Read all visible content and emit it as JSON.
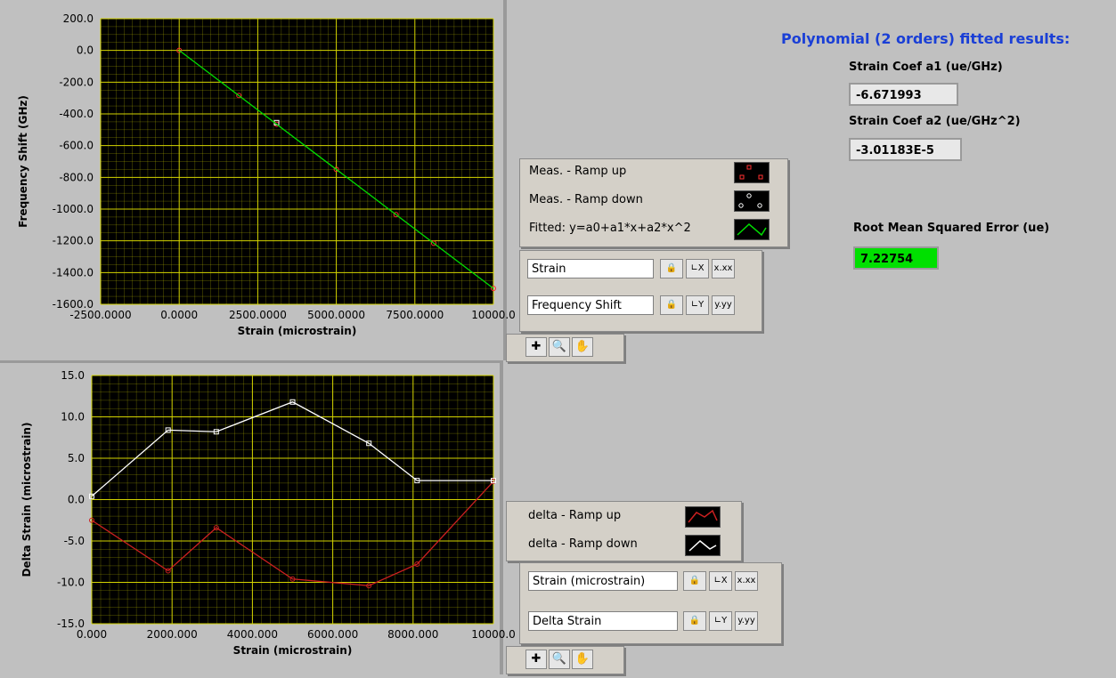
{
  "results": {
    "heading": "Polynomial (2 orders) fitted results:",
    "a1_label": "Strain Coef a1 (ue/GHz)",
    "a1_value": "-6.671993",
    "a2_label": "Strain Coef a2 (ue/GHz^2)",
    "a2_value": "-3.01183E-5",
    "rmse_label": "Root Mean Squared Error (ue)",
    "rmse_value": "7.22754",
    "rmse_color": "#00e000",
    "heading_color": "#1a3fd6"
  },
  "legend_top": {
    "items": [
      "Meas. - Ramp up",
      "Meas. - Ramp down",
      "Fitted: y=a0+a1*x+a2*x^2"
    ]
  },
  "scale_top": {
    "x_name": "Strain",
    "y_name": "Frequency Shift",
    "x_fmt": "x.xx",
    "y_fmt": "y.yy"
  },
  "legend_bottom": {
    "items": [
      "delta - Ramp up",
      "delta - Ramp down"
    ]
  },
  "scale_bottom": {
    "x_name": "Strain (microstrain)",
    "y_name": "Delta Strain",
    "x_fmt": "x.xx",
    "y_fmt": "y.yy"
  },
  "chart_data": [
    {
      "type": "scatter",
      "xlabel": "Strain (microstrain)",
      "ylabel": "Frequency Shift (GHz)",
      "xlim": [
        -2500,
        10000
      ],
      "ylim": [
        -1600,
        200
      ],
      "x_ticks": [
        "-2500.0000",
        "0.0000",
        "2500.0000",
        "5000.0000",
        "7500.0000",
        "10000.0"
      ],
      "y_ticks": [
        "200.0",
        "0.0",
        "-200.0",
        "-400.0",
        "-600.0",
        "-800.0",
        "-1000.0",
        "-1200.0",
        "-1400.0",
        "-1600.0"
      ],
      "grid": true,
      "background": "#000000",
      "grid_color": "#d4d400",
      "series": [
        {
          "name": "Meas. - Ramp up",
          "color": "#ff3030",
          "x": [
            0,
            1900,
            3100,
            5000,
            6900,
            8100,
            10000
          ],
          "y": [
            0,
            -284,
            -465,
            -750,
            -1035,
            -1215,
            -1500
          ]
        },
        {
          "name": "Meas. - Ramp down",
          "color": "#ffffff",
          "x": [
            3100
          ],
          "y": [
            -455
          ]
        },
        {
          "name": "Fitted: y=a0+a1*x+a2*x^2",
          "color": "#00dd00",
          "x": [
            0,
            10000
          ],
          "y": [
            0,
            -1500
          ]
        }
      ]
    },
    {
      "type": "line",
      "xlabel": "Strain (microstrain)",
      "ylabel": "Delta Strain (microstrain)",
      "xlim": [
        0,
        10000
      ],
      "ylim": [
        -15,
        15
      ],
      "x_ticks": [
        "0.000",
        "2000.000",
        "4000.000",
        "6000.000",
        "8000.000",
        "10000.0"
      ],
      "y_ticks": [
        "15.0",
        "10.0",
        "5.0",
        "0.0",
        "-5.0",
        "-10.0",
        "-15.0"
      ],
      "grid": true,
      "background": "#000000",
      "grid_color": "#d4d400",
      "series": [
        {
          "name": "delta - Ramp up",
          "color": "#cc2020",
          "x": [
            0,
            1900,
            3100,
            5000,
            6900,
            8100,
            10000
          ],
          "y": [
            -2.5,
            -8.6,
            -3.4,
            -9.6,
            -10.4,
            -7.8,
            2.2
          ]
        },
        {
          "name": "delta - Ramp down",
          "color": "#ffffff",
          "x": [
            0,
            1900,
            3100,
            5000,
            6900,
            8100,
            10000
          ],
          "y": [
            0.4,
            8.4,
            8.2,
            11.8,
            6.8,
            2.3,
            2.3
          ]
        }
      ]
    }
  ]
}
